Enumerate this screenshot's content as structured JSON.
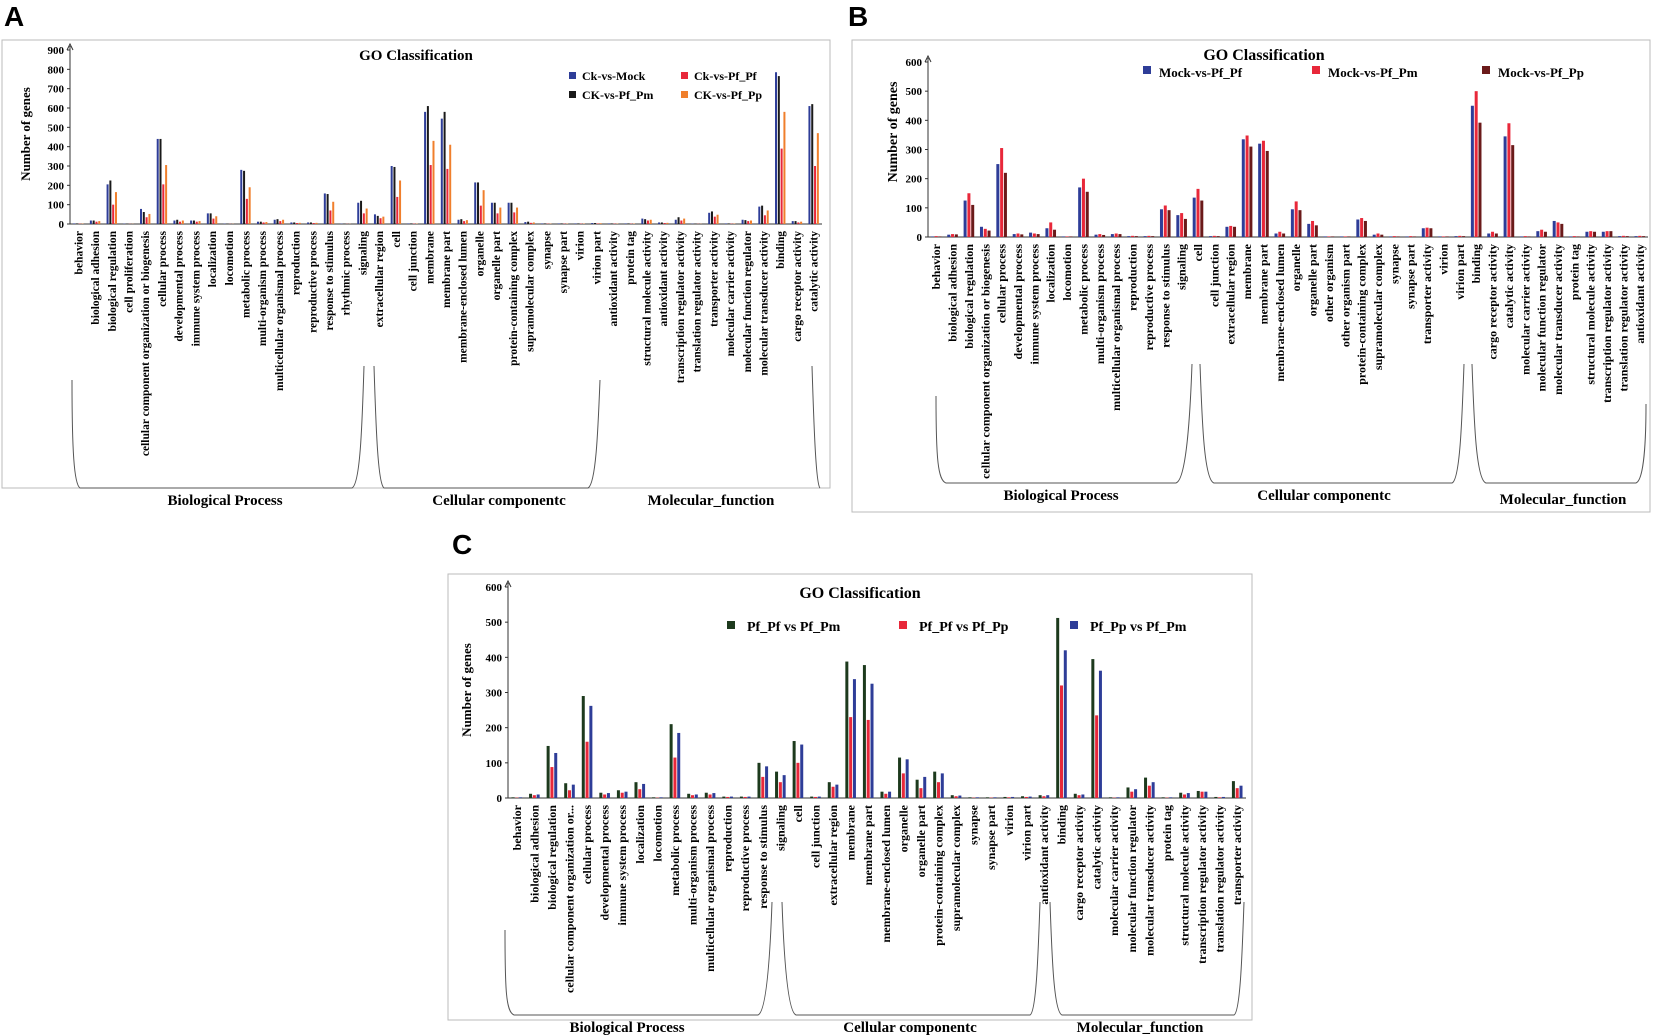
{
  "figure": {
    "panel_labels": [
      "A",
      "B",
      "C"
    ],
    "group_labels": [
      "Biological Process",
      "Cellular componentc",
      "Molecular_function"
    ]
  },
  "chart_data": [
    {
      "panel": "A",
      "type": "bar",
      "title": "GO Classification",
      "xlabel": "",
      "ylabel": "Number of genes",
      "ylim": [
        0,
        900
      ],
      "yticks": [
        0,
        100,
        200,
        300,
        400,
        500,
        600,
        700,
        800,
        900
      ],
      "legend_position": "top-right",
      "categories": [
        "behavior",
        "biological adhesion",
        "biological regulation",
        "cell proliferation",
        "cellular component organization or biogenesis",
        "cellular process",
        "developmental process",
        "immune system process",
        "localization",
        "locomotion",
        "metabolic process",
        "multi-organism process",
        "multicellular organismal process",
        "reproduction",
        "reproductive process",
        "response to stimulus",
        "rhythmic process",
        "signaling",
        "extracellular region",
        "cell",
        "cell junction",
        "membrane",
        "membrane part",
        "membrane-enclosed lumen",
        "organelle",
        "organelle part",
        "protein-containing complex",
        "supramolecular complex",
        "synapse",
        "synapse part",
        "virion",
        "virion part",
        "antioxidant activity",
        "protein tag",
        "structural molecule activity",
        "antioxidant activity",
        "transcription regulator activity",
        "translation regulator activity",
        "transporter activity",
        "molecular carrier activity",
        "molecular function regulator",
        "molecular transducer activity",
        "binding",
        "cargo receptor activity",
        "catalytic activity"
      ],
      "series": [
        {
          "name": "Ck-vs-Mock",
          "color": "#2e3d98",
          "values": [
            3,
            18,
            205,
            2,
            78,
            440,
            18,
            18,
            55,
            2,
            280,
            12,
            22,
            8,
            8,
            158,
            2,
            110,
            50,
            300,
            3,
            580,
            545,
            22,
            215,
            110,
            110,
            10,
            3,
            3,
            3,
            5,
            3,
            3,
            28,
            8,
            22,
            2,
            58,
            3,
            22,
            90,
            785,
            15,
            610
          ]
        },
        {
          "name": "CK-vs-Pf_Pm",
          "color": "#1a1a1a",
          "values": [
            3,
            18,
            225,
            2,
            62,
            440,
            22,
            18,
            55,
            2,
            275,
            12,
            25,
            8,
            8,
            155,
            2,
            120,
            42,
            295,
            3,
            610,
            580,
            25,
            215,
            110,
            110,
            12,
            3,
            3,
            3,
            5,
            3,
            3,
            25,
            8,
            35,
            2,
            65,
            3,
            20,
            95,
            765,
            15,
            620
          ]
        },
        {
          "name": "Ck-vs-Pf_Pf",
          "color": "#e8283a",
          "values": [
            2,
            12,
            100,
            1,
            35,
            205,
            12,
            12,
            28,
            1,
            130,
            8,
            15,
            5,
            5,
            70,
            1,
            55,
            30,
            140,
            2,
            305,
            285,
            15,
            95,
            55,
            60,
            6,
            2,
            2,
            2,
            3,
            2,
            2,
            18,
            5,
            18,
            1,
            38,
            2,
            15,
            45,
            390,
            8,
            300
          ]
        },
        {
          "name": "CK-vs-Pf_Pp",
          "color": "#f07f2c",
          "values": [
            2,
            15,
            165,
            1,
            52,
            305,
            18,
            15,
            40,
            1,
            190,
            10,
            22,
            6,
            6,
            115,
            1,
            80,
            38,
            225,
            2,
            430,
            410,
            20,
            175,
            85,
            85,
            8,
            2,
            2,
            2,
            4,
            2,
            2,
            22,
            6,
            28,
            1,
            48,
            2,
            18,
            70,
            580,
            12,
            470
          ]
        }
      ]
    },
    {
      "panel": "B",
      "type": "bar",
      "title": "GO Classification",
      "xlabel": "",
      "ylabel": "Number of genes",
      "ylim": [
        0,
        600
      ],
      "yticks": [
        0,
        100,
        200,
        300,
        400,
        500,
        600
      ],
      "legend_position": "top",
      "categories": [
        "behavior",
        "biological adhesion",
        "biological regulation",
        "cellular component organization or biogenesis",
        "cellular process",
        "developmental process",
        "immune system process",
        "localization",
        "locomotion",
        "metabolic process",
        "multi-organism process",
        "multicellular organismal process",
        "reproduction",
        "reproductive process",
        "response to stimulus",
        "signaling",
        "cell",
        "cell junction",
        "extracellular region",
        "membrane",
        "membrane part",
        "membrane-enclosed lumen",
        "organelle",
        "organelle part",
        "other organism",
        "other organism part",
        "protein-containing complex",
        "supramolecular complex",
        "synapse",
        "synapse part",
        "transporter activity",
        "virion",
        "virion part",
        "binding",
        "cargo receptor activity",
        "catalytic activity",
        "molecular carrier activity",
        "molecular function regulator",
        "molecular transducer activity",
        "protein tag",
        "structural molecule activity",
        "transcription regulator activity",
        "translation regulator activity",
        "antioxidant activity"
      ],
      "series": [
        {
          "name": "Mock-vs-Pf_Pf",
          "color": "#2e3d98",
          "values": [
            2,
            8,
            125,
            35,
            250,
            10,
            15,
            30,
            2,
            170,
            8,
            10,
            3,
            3,
            95,
            75,
            135,
            3,
            35,
            335,
            320,
            12,
            95,
            45,
            2,
            2,
            60,
            8,
            2,
            2,
            30,
            2,
            3,
            450,
            12,
            345,
            2,
            20,
            55,
            2,
            18,
            18,
            3,
            3
          ]
        },
        {
          "name": "Mock-vs-Pf_Pm",
          "color": "#e8283a",
          "values": [
            3,
            10,
            150,
            28,
            305,
            12,
            12,
            50,
            2,
            200,
            10,
            12,
            4,
            4,
            108,
            82,
            165,
            4,
            38,
            348,
            330,
            18,
            122,
            55,
            2,
            2,
            65,
            12,
            3,
            3,
            32,
            2,
            4,
            500,
            18,
            390,
            3,
            25,
            50,
            3,
            20,
            20,
            4,
            4
          ]
        },
        {
          "name": "Mock-vs-Pf_Pp",
          "color": "#6b1a1a",
          "values": [
            2,
            9,
            110,
            22,
            220,
            9,
            10,
            25,
            2,
            155,
            7,
            10,
            3,
            3,
            92,
            62,
            125,
            3,
            35,
            310,
            295,
            12,
            92,
            40,
            2,
            2,
            55,
            8,
            2,
            2,
            30,
            2,
            3,
            392,
            12,
            315,
            2,
            18,
            45,
            2,
            18,
            20,
            3,
            3
          ]
        }
      ]
    },
    {
      "panel": "C",
      "type": "bar",
      "title": "GO Classification",
      "xlabel": "",
      "ylabel": "Number of genes",
      "ylim": [
        0,
        600
      ],
      "yticks": [
        0,
        100,
        200,
        300,
        400,
        500,
        600
      ],
      "legend_position": "top",
      "categories": [
        "behavior",
        "biological adhesion",
        "biological regulation",
        "cellular component organization or...",
        "cellular process",
        "developmental process",
        "immune system process",
        "localization",
        "locomotion",
        "metabolic process",
        "multi-organism process",
        "multicellular organismal process",
        "reproduction",
        "reproductive process",
        "response to stimulus",
        "signaling",
        "cell",
        "cell junction",
        "extracellular region",
        "membrane",
        "membrane part",
        "membrane-enclosed lumen",
        "organelle",
        "organelle part",
        "protein-containing complex",
        "supramolecular complex",
        "synapse",
        "synapse part",
        "virion",
        "virion part",
        "antioxidant activity",
        "binding",
        "cargo receptor activity",
        "catalytic activity",
        "molecular carrier activity",
        "molecular function regulator",
        "molecular transducer activity",
        "protein tag",
        "structural molecule activity",
        "transcription regulator activity",
        "translation regulator activity",
        "transporter activity"
      ],
      "series": [
        {
          "name": "Pf_Pf vs Pf_Pm",
          "color": "#1d3a1d",
          "values": [
            2,
            12,
            148,
            42,
            290,
            15,
            22,
            45,
            2,
            210,
            12,
            15,
            4,
            4,
            100,
            75,
            162,
            4,
            45,
            388,
            378,
            18,
            115,
            52,
            75,
            8,
            2,
            2,
            3,
            5,
            8,
            512,
            12,
            395,
            2,
            30,
            58,
            2,
            15,
            20,
            3,
            48
          ]
        },
        {
          "name": "Pf_Pf vs Pf_Pp",
          "color": "#e8283a",
          "values": [
            1,
            8,
            88,
            22,
            160,
            10,
            15,
            25,
            1,
            115,
            8,
            10,
            3,
            3,
            60,
            45,
            100,
            3,
            32,
            230,
            222,
            12,
            70,
            28,
            45,
            5,
            1,
            1,
            2,
            3,
            5,
            320,
            8,
            235,
            1,
            18,
            35,
            1,
            10,
            18,
            2,
            28
          ]
        },
        {
          "name": "Pf_Pp vs Pf_Pm",
          "color": "#2e3d98",
          "values": [
            2,
            10,
            128,
            38,
            262,
            14,
            18,
            40,
            2,
            185,
            10,
            14,
            4,
            4,
            90,
            65,
            152,
            4,
            38,
            338,
            325,
            18,
            110,
            60,
            70,
            7,
            2,
            2,
            3,
            4,
            8,
            420,
            10,
            362,
            2,
            25,
            45,
            2,
            14,
            18,
            3,
            35
          ]
        }
      ]
    }
  ]
}
